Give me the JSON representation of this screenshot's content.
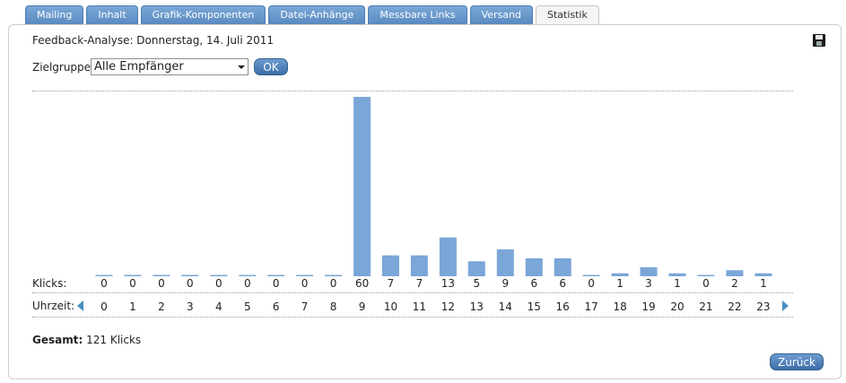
{
  "tabs": [
    {
      "label": "Mailing",
      "active": false
    },
    {
      "label": "Inhalt",
      "active": false
    },
    {
      "label": "Grafik-Komponenten",
      "active": false
    },
    {
      "label": "Datei-Anhänge",
      "active": false
    },
    {
      "label": "Messbare Links",
      "active": false
    },
    {
      "label": "Versand",
      "active": false
    },
    {
      "label": "Statistik",
      "active": true
    }
  ],
  "header": {
    "title": "Feedback-Analyse: Donnerstag, 14. Juli 2011",
    "save_icon": "save-icon"
  },
  "filter": {
    "label": "Zielgruppe:",
    "selected": "Alle Empfänger",
    "ok_label": "OK"
  },
  "chart_data": {
    "type": "bar",
    "clicks_label": "Klicks:",
    "time_label": "Uhrzeit:",
    "categories": [
      "0",
      "1",
      "2",
      "3",
      "4",
      "5",
      "6",
      "7",
      "8",
      "9",
      "10",
      "11",
      "12",
      "13",
      "14",
      "15",
      "16",
      "17",
      "18",
      "19",
      "20",
      "21",
      "22",
      "23"
    ],
    "values": [
      0,
      0,
      0,
      0,
      0,
      0,
      0,
      0,
      0,
      60,
      7,
      7,
      13,
      5,
      9,
      6,
      6,
      0,
      1,
      3,
      1,
      0,
      2,
      1
    ],
    "color": "#7ba6d8"
  },
  "summary": {
    "total_label": "Gesamt:",
    "total_value": "121 Klicks"
  },
  "actions": {
    "back_label": "Zurück"
  },
  "colors": {
    "tab": "#6b99cc",
    "button": "#4f7fb8",
    "bar": "#7ba6d8"
  }
}
